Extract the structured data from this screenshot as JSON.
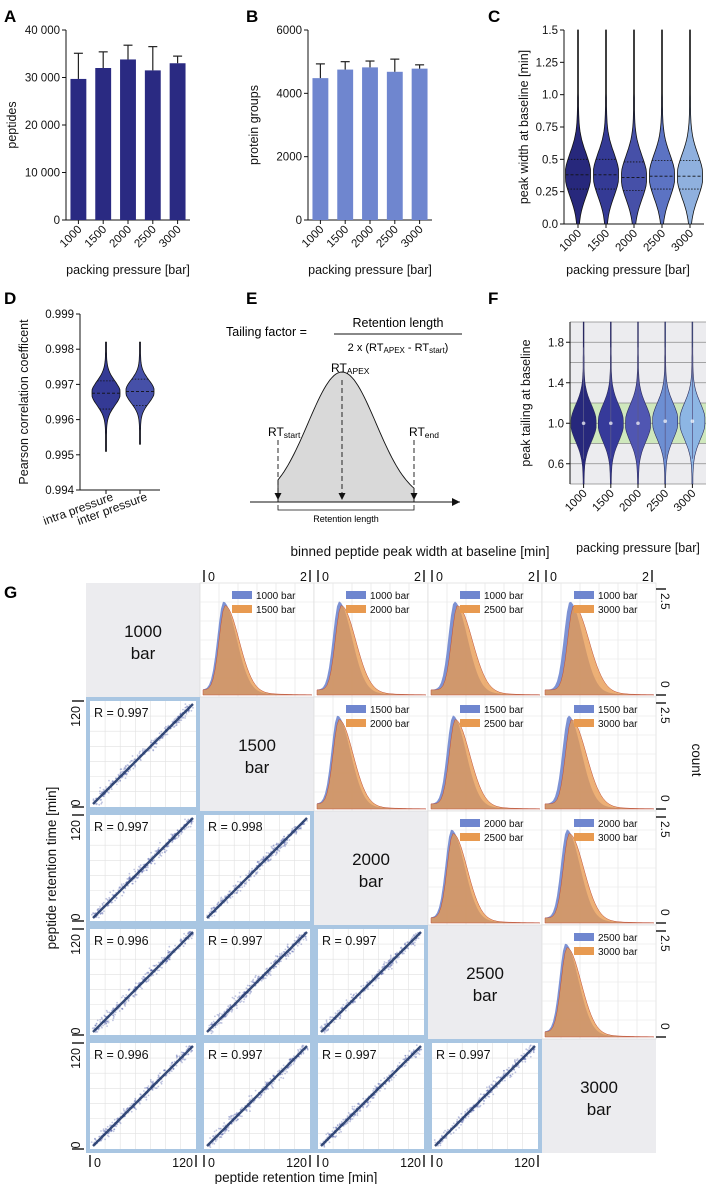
{
  "panel_letters": {
    "A": "A",
    "B": "B",
    "C": "C",
    "D": "D",
    "E": "E",
    "F": "F",
    "G": "G"
  },
  "colors": {
    "navy": "#2a2a82",
    "mid_blue": "#6f86cf",
    "violin_1000": "#27287c",
    "violin_1500": "#343a95",
    "violin_2000": "#4650a8",
    "violin_2500": "#5c73c3",
    "violin_3000": "#8fb0de",
    "tail_violin_1000": "#27287c",
    "tail_violin_1500": "#363a9a",
    "tail_violin_2000": "#5056b2",
    "tail_violin_2500": "#6d8fd3",
    "tail_violin_3000": "#8db6e4",
    "gray_bg": "#ececef",
    "green_band": "#cfe8bd",
    "hist_blue": "#6f86cf",
    "hist_orange": "#e89a50",
    "scatter_border": "#a9c6e2"
  },
  "chart_data": [
    {
      "id": "A",
      "type": "bar",
      "categories": [
        "1000",
        "1500",
        "2000",
        "2500",
        "3000"
      ],
      "values": [
        29700,
        32000,
        33800,
        31500,
        33000
      ],
      "errors": [
        5400,
        3400,
        3000,
        5000,
        1500
      ],
      "ylabel": "peptides",
      "xlabel": "packing pressure [bar]",
      "ylim": [
        0,
        40000
      ],
      "yticks": [
        0,
        10000,
        20000,
        30000,
        40000
      ],
      "ytick_labels": [
        "0",
        "10 000",
        "20 000",
        "30 000",
        "40 000"
      ]
    },
    {
      "id": "B",
      "type": "bar",
      "categories": [
        "1000",
        "1500",
        "2000",
        "2500",
        "3000"
      ],
      "values": [
        4480,
        4750,
        4820,
        4680,
        4780
      ],
      "errors": [
        450,
        250,
        200,
        400,
        120
      ],
      "ylabel": "protein groups",
      "xlabel": "packing pressure [bar]",
      "ylim": [
        0,
        6000
      ],
      "yticks": [
        0,
        2000,
        4000,
        6000
      ],
      "ytick_labels": [
        "0",
        "2000",
        "4000",
        "6000"
      ]
    },
    {
      "id": "C",
      "type": "violin",
      "categories": [
        "1000",
        "1500",
        "2000",
        "2500",
        "3000"
      ],
      "medians": [
        0.38,
        0.38,
        0.36,
        0.37,
        0.37
      ],
      "quartiles": [
        [
          0.27,
          0.5
        ],
        [
          0.27,
          0.5
        ],
        [
          0.26,
          0.48
        ],
        [
          0.27,
          0.49
        ],
        [
          0.27,
          0.49
        ]
      ],
      "ranges": [
        [
          0.0,
          1.5
        ],
        [
          0.0,
          1.5
        ],
        [
          0.0,
          1.5
        ],
        [
          0.0,
          1.5
        ],
        [
          0.0,
          1.5
        ]
      ],
      "ylabel": "peak width at baseline [min]",
      "xlabel": "packing pressure [bar]",
      "ylim": [
        0,
        1.5
      ],
      "yticks": [
        0,
        0.25,
        0.5,
        0.75,
        1.0,
        1.25,
        1.5
      ],
      "ytick_labels": [
        "0.0",
        "0.25",
        "0.5",
        "0.75",
        "1.0",
        "1.25",
        "1.5"
      ]
    },
    {
      "id": "D",
      "type": "violin",
      "categories": [
        "intra pressure",
        "inter pressure"
      ],
      "medians": [
        0.99675,
        0.9968
      ],
      "quartiles": [
        [
          0.9963,
          0.9971
        ],
        [
          0.9964,
          0.99715
        ]
      ],
      "ranges": [
        [
          0.9951,
          0.9982
        ],
        [
          0.9953,
          0.9982
        ]
      ],
      "ylabel": "Pearson correlation coefficent",
      "ylim": [
        0.994,
        0.999
      ],
      "yticks": [
        0.994,
        0.995,
        0.996,
        0.997,
        0.998,
        0.999
      ],
      "ytick_labels": [
        "0.994",
        "0.995",
        "0.996",
        "0.997",
        "0.998",
        "0.999"
      ]
    },
    {
      "id": "F",
      "type": "violin",
      "categories": [
        "1000",
        "1500",
        "2000",
        "2500",
        "3000"
      ],
      "medians": [
        1.0,
        1.0,
        1.0,
        1.02,
        1.02
      ],
      "ranges": [
        [
          0.4,
          2.0
        ],
        [
          0.4,
          2.0
        ],
        [
          0.4,
          2.0
        ],
        [
          0.4,
          2.0
        ],
        [
          0.4,
          2.0
        ]
      ],
      "ylabel": "peak tailing at baseline",
      "xlabel": "packing pressure [bar]",
      "ylim": [
        0.4,
        2.0
      ],
      "yticks": [
        0.6,
        1.0,
        1.4,
        1.8
      ],
      "ytick_labels": [
        "0.6",
        "1.0",
        "1.4",
        "1.8"
      ],
      "gridlines": [
        0.4,
        0.6,
        0.8,
        1.0,
        1.2,
        1.4,
        1.6,
        1.8,
        2.0
      ],
      "band": [
        0.8,
        1.2
      ]
    },
    {
      "id": "G",
      "type": "pair-matrix",
      "pressures": [
        "1000",
        "1500",
        "2000",
        "2500",
        "3000"
      ],
      "diag_labels": [
        [
          "1000",
          "bar"
        ],
        [
          "1500",
          "bar"
        ],
        [
          "2000",
          "bar"
        ],
        [
          "2500",
          "bar"
        ],
        [
          "3000",
          "bar"
        ]
      ],
      "top_axis_title": "binned peptide peak width at baseline [min]",
      "top_ticks": [
        "0",
        "2"
      ],
      "right_ticks": [
        "2.5",
        "0"
      ],
      "right_axis_title": "count",
      "left_axis_title": "peptide retention time [min]",
      "left_ticks": [
        "120",
        "0"
      ],
      "bottom_axis_title": "peptide retention time [min]",
      "bottom_ticks": [
        "0",
        "120"
      ],
      "hist_pairs": [
        {
          "row": 0,
          "col": 1,
          "a": "1000 bar",
          "b": "1500 bar"
        },
        {
          "row": 0,
          "col": 2,
          "a": "1000 bar",
          "b": "2000 bar"
        },
        {
          "row": 0,
          "col": 3,
          "a": "1000 bar",
          "b": "2500 bar"
        },
        {
          "row": 0,
          "col": 4,
          "a": "1000 bar",
          "b": "3000 bar"
        },
        {
          "row": 1,
          "col": 2,
          "a": "1500 bar",
          "b": "2000 bar"
        },
        {
          "row": 1,
          "col": 3,
          "a": "1500 bar",
          "b": "2500 bar"
        },
        {
          "row": 1,
          "col": 4,
          "a": "1500 bar",
          "b": "3000 bar"
        },
        {
          "row": 2,
          "col": 3,
          "a": "2000 bar",
          "b": "2500 bar"
        },
        {
          "row": 2,
          "col": 4,
          "a": "2000 bar",
          "b": "3000 bar"
        },
        {
          "row": 3,
          "col": 4,
          "a": "2500 bar",
          "b": "3000 bar"
        }
      ],
      "scatter_pairs": [
        {
          "row": 1,
          "col": 0,
          "r": "R = 0.997"
        },
        {
          "row": 2,
          "col": 0,
          "r": "R = 0.997"
        },
        {
          "row": 2,
          "col": 1,
          "r": "R = 0.998"
        },
        {
          "row": 3,
          "col": 0,
          "r": "R = 0.996"
        },
        {
          "row": 3,
          "col": 1,
          "r": "R = 0.997"
        },
        {
          "row": 3,
          "col": 2,
          "r": "R = 0.997"
        },
        {
          "row": 4,
          "col": 0,
          "r": "R = 0.996"
        },
        {
          "row": 4,
          "col": 1,
          "r": "R = 0.997"
        },
        {
          "row": 4,
          "col": 2,
          "r": "R = 0.997"
        },
        {
          "row": 4,
          "col": 3,
          "r": "R = 0.997"
        }
      ]
    }
  ],
  "panelE": {
    "lhs": "Tailing factor =",
    "numerator": "Retention length",
    "denominator_prefix": "2 x (RT",
    "denominator_sub1": "APEX",
    "denominator_mid": " - RT",
    "denominator_sub2": "start",
    "denominator_suffix": ")",
    "apex_main": "RT",
    "apex_sub": "APEX",
    "start_main": "RT",
    "start_sub": "start",
    "end_main": "RT",
    "end_sub": "end",
    "retention_label": "Retention length"
  }
}
